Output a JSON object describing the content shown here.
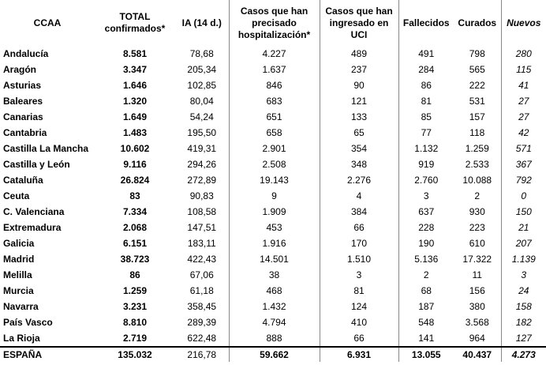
{
  "table": {
    "header": [
      "CCAA",
      "TOTAL confirmados*",
      "IA (14 d.)",
      "Casos que han precisado hospitalización*",
      "Casos que han ingresado en UCI",
      "Fallecidos",
      "Curados",
      "Nuevos"
    ],
    "rows": [
      [
        "Andalucía",
        "8.581",
        "78,68",
        "4.227",
        "489",
        "491",
        "798",
        "280"
      ],
      [
        "Aragón",
        "3.347",
        "205,34",
        "1.637",
        "237",
        "284",
        "565",
        "115"
      ],
      [
        "Asturias",
        "1.646",
        "102,85",
        "846",
        "90",
        "86",
        "222",
        "41"
      ],
      [
        "Baleares",
        "1.320",
        "80,04",
        "683",
        "121",
        "81",
        "531",
        "27"
      ],
      [
        "Canarias",
        "1.649",
        "54,24",
        "651",
        "133",
        "85",
        "157",
        "27"
      ],
      [
        "Cantabria",
        "1.483",
        "195,50",
        "658",
        "65",
        "77",
        "118",
        "42"
      ],
      [
        "Castilla La Mancha",
        "10.602",
        "419,31",
        "2.901",
        "354",
        "1.132",
        "1.259",
        "571"
      ],
      [
        "Castilla y León",
        "9.116",
        "294,26",
        "2.508",
        "348",
        "919",
        "2.533",
        "367"
      ],
      [
        "Cataluña",
        "26.824",
        "272,89",
        "19.143",
        "2.276",
        "2.760",
        "10.088",
        "792"
      ],
      [
        "Ceuta",
        "83",
        "90,83",
        "9",
        "4",
        "3",
        "2",
        "0"
      ],
      [
        "C. Valenciana",
        "7.334",
        "108,58",
        "1.909",
        "384",
        "637",
        "930",
        "150"
      ],
      [
        "Extremadura",
        "2.068",
        "147,51",
        "453",
        "66",
        "228",
        "223",
        "21"
      ],
      [
        "Galicia",
        "6.151",
        "183,11",
        "1.916",
        "170",
        "190",
        "610",
        "207"
      ],
      [
        "Madrid",
        "38.723",
        "422,43",
        "14.501",
        "1.510",
        "5.136",
        "17.322",
        "1.139"
      ],
      [
        "Melilla",
        "86",
        "67,06",
        "38",
        "3",
        "2",
        "11",
        "3"
      ],
      [
        "Murcia",
        "1.259",
        "61,18",
        "468",
        "81",
        "68",
        "156",
        "24"
      ],
      [
        "Navarra",
        "3.231",
        "358,45",
        "1.432",
        "124",
        "187",
        "380",
        "158"
      ],
      [
        "País Vasco",
        "8.810",
        "289,39",
        "4.794",
        "410",
        "548",
        "3.568",
        "182"
      ],
      [
        "La Rioja",
        "2.719",
        "622,48",
        "888",
        "66",
        "141",
        "964",
        "127"
      ]
    ],
    "total": [
      "ESPAÑA",
      "135.032",
      "216,78",
      "59.662",
      "6.931",
      "13.055",
      "40.437",
      "4.273"
    ]
  }
}
